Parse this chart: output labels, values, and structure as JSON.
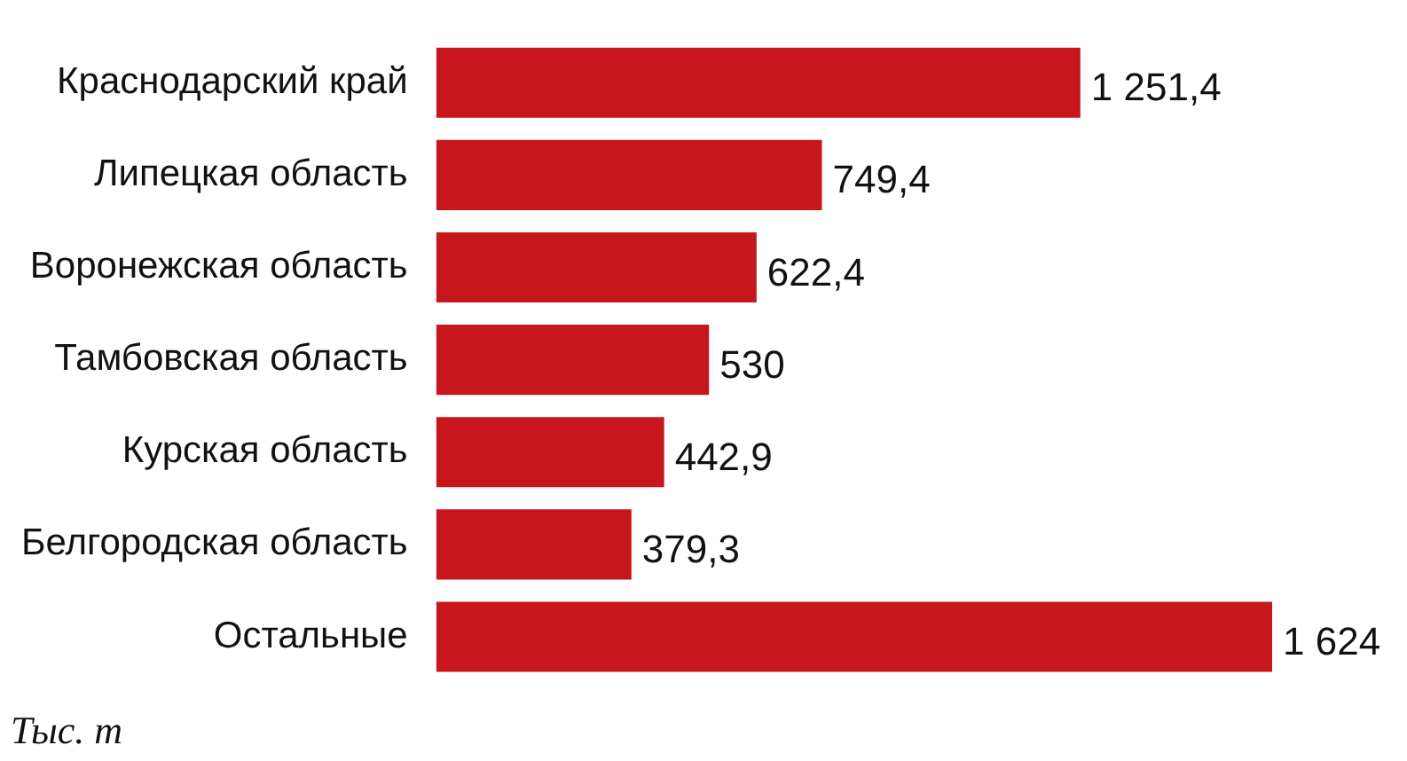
{
  "chart_data": {
    "type": "bar",
    "orientation": "horizontal",
    "categories": [
      "Краснодарский край",
      "Липецкая область",
      "Воронежская область",
      "Тамбовская область",
      "Курская область",
      "Белгородская область",
      "Остальные"
    ],
    "values": [
      1251.4,
      749.4,
      622.4,
      530,
      442.9,
      379.3,
      1624
    ],
    "value_labels": [
      "1 251,4",
      "749,4",
      "622,4",
      "530",
      "442,9",
      "379,3",
      "1 624"
    ],
    "color": "#c8161d",
    "tick_labels": "y",
    "grid": false,
    "legend": false,
    "annotations": [
      "Тыс. т"
    ]
  }
}
